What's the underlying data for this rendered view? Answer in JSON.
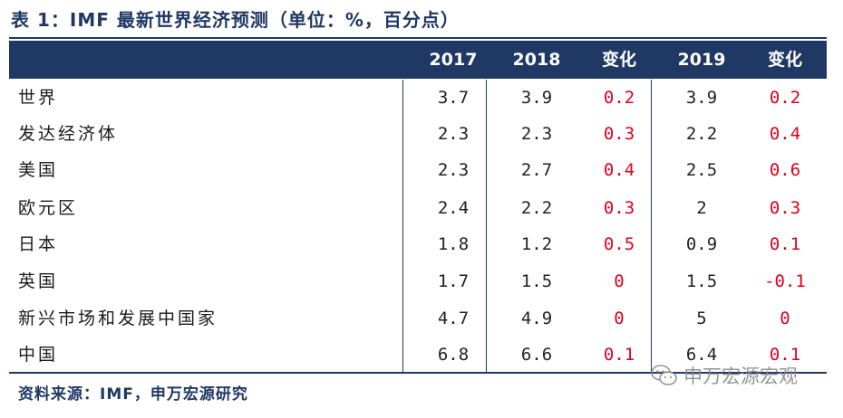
{
  "title": "表 1：IMF 最新世界经济预测（单位：%，百分点）",
  "header": {
    "col_2017": "2017",
    "col_2018": "2018",
    "col_change1": "变化",
    "col_2019": "2019",
    "col_change2": "变化"
  },
  "rows": [
    {
      "label": "世界",
      "v2017": "3.7",
      "v2018": "3.9",
      "chg1": "0.2",
      "v2019": "3.9",
      "chg2": "0.2"
    },
    {
      "label": "发达经济体",
      "v2017": "2.3",
      "v2018": "2.3",
      "chg1": "0.3",
      "v2019": "2.2",
      "chg2": "0.4"
    },
    {
      "label": "美国",
      "v2017": "2.3",
      "v2018": "2.7",
      "chg1": "0.4",
      "v2019": "2.5",
      "chg2": "0.6"
    },
    {
      "label": "欧元区",
      "v2017": "2.4",
      "v2018": "2.2",
      "chg1": "0.3",
      "v2019": "2",
      "chg2": "0.3"
    },
    {
      "label": "日本",
      "v2017": "1.8",
      "v2018": "1.2",
      "chg1": "0.5",
      "v2019": "0.9",
      "chg2": "0.1"
    },
    {
      "label": "英国",
      "v2017": "1.7",
      "v2018": "1.5",
      "chg1": "0",
      "v2019": "1.5",
      "chg2": "-0.1"
    },
    {
      "label": "新兴市场和发展中国家",
      "v2017": "4.7",
      "v2018": "4.9",
      "chg1": "0",
      "v2019": "5",
      "chg2": "0"
    },
    {
      "label": "中国",
      "v2017": "6.8",
      "v2018": "6.6",
      "chg1": "0.1",
      "v2019": "6.4",
      "chg2": "0.1"
    }
  ],
  "source": "资料来源：IMF，申万宏源研究",
  "watermark": "申万宏源宏观",
  "colors": {
    "navy": "#1f3864",
    "change_red": "#e0001b"
  }
}
